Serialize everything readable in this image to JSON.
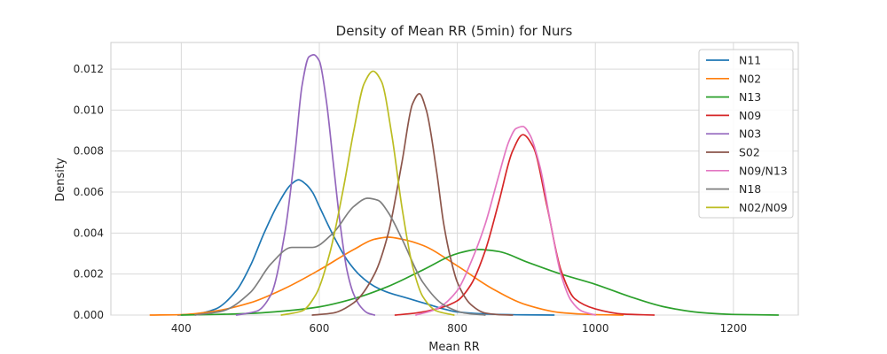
{
  "chart_data": {
    "type": "line",
    "title": "Density of Mean RR (5min) for Nurs",
    "xlabel": "Mean RR",
    "ylabel": "Density",
    "xlim": [
      298,
      1294
    ],
    "ylim": [
      0,
      0.0133
    ],
    "xticks": [
      400,
      600,
      800,
      1000,
      1200
    ],
    "xtick_labels": [
      "400",
      "600",
      "800",
      "1000",
      "1200"
    ],
    "yticks": [
      0,
      0.002,
      0.004,
      0.006,
      0.008,
      0.01,
      0.012
    ],
    "ytick_labels": [
      "0.000",
      "0.002",
      "0.004",
      "0.006",
      "0.008",
      "0.010",
      "0.012"
    ],
    "grid": true,
    "legend_position": "top-right",
    "series": [
      {
        "name": "N11",
        "color": "#1f77b4",
        "x": [
          395,
          420,
          450,
          480,
          500,
          520,
          540,
          560,
          570,
          580,
          590,
          600,
          620,
          640,
          660,
          680,
          700,
          720,
          740,
          760,
          780,
          800,
          850,
          900,
          940
        ],
        "y": [
          0,
          5e-05,
          0.0003,
          0.0012,
          0.0024,
          0.004,
          0.0054,
          0.0064,
          0.0066,
          0.0064,
          0.006,
          0.0053,
          0.0039,
          0.0027,
          0.0019,
          0.0014,
          0.0011,
          0.0009,
          0.0007,
          0.0005,
          0.0003,
          0.00015,
          4e-05,
          1e-05,
          0
        ]
      },
      {
        "name": "N02",
        "color": "#ff7f0e",
        "x": [
          355,
          400,
          450,
          500,
          550,
          600,
          650,
          680,
          700,
          720,
          750,
          800,
          850,
          900,
          950,
          1000,
          1040
        ],
        "y": [
          0,
          2e-05,
          0.0002,
          0.0006,
          0.0013,
          0.0022,
          0.0032,
          0.0037,
          0.0038,
          0.0037,
          0.0034,
          0.0024,
          0.0013,
          0.0005,
          0.00012,
          2e-05,
          0
        ]
      },
      {
        "name": "N13",
        "color": "#2ca02c",
        "x": [
          400,
          450,
          500,
          550,
          600,
          650,
          700,
          750,
          800,
          830,
          860,
          900,
          950,
          1000,
          1050,
          1100,
          1150,
          1200,
          1265
        ],
        "y": [
          0,
          3e-05,
          8e-05,
          0.0002,
          0.0004,
          0.0008,
          0.0014,
          0.0022,
          0.003,
          0.0032,
          0.0031,
          0.0026,
          0.002,
          0.0015,
          0.0009,
          0.0004,
          0.00013,
          3e-05,
          0
        ]
      },
      {
        "name": "N09",
        "color": "#d62728",
        "x": [
          710,
          740,
          770,
          800,
          820,
          840,
          860,
          880,
          895,
          910,
          930,
          950,
          970,
          1000,
          1040,
          1085
        ],
        "y": [
          0,
          0.0001,
          0.0003,
          0.0007,
          0.0015,
          0.0031,
          0.0055,
          0.008,
          0.0088,
          0.0082,
          0.0053,
          0.0022,
          0.0008,
          0.0003,
          5e-05,
          0
        ]
      },
      {
        "name": "N03",
        "color": "#9467bd",
        "x": [
          480,
          510,
          530,
          550,
          565,
          575,
          585,
          592,
          600,
          610,
          620,
          630,
          640,
          650,
          660,
          670,
          680
        ],
        "y": [
          0,
          0.0002,
          0.001,
          0.004,
          0.008,
          0.0112,
          0.0126,
          0.0127,
          0.0124,
          0.0105,
          0.0075,
          0.0045,
          0.0022,
          0.001,
          0.0004,
          0.0001,
          0
        ]
      },
      {
        "name": "S02",
        "color": "#8c564b",
        "x": [
          590,
          620,
          650,
          680,
          700,
          720,
          735,
          745,
          755,
          770,
          780,
          790,
          800,
          820,
          840,
          860,
          880
        ],
        "y": [
          0,
          0.0001,
          0.0006,
          0.002,
          0.004,
          0.0075,
          0.0103,
          0.0108,
          0.01,
          0.007,
          0.0045,
          0.0028,
          0.0016,
          0.0005,
          0.0001,
          2e-05,
          0
        ]
      },
      {
        "name": "N09/N13",
        "color": "#e377c2",
        "x": [
          740,
          770,
          800,
          820,
          840,
          860,
          875,
          885,
          895,
          905,
          920,
          935,
          950,
          965,
          980,
          1000
        ],
        "y": [
          0,
          0.0003,
          0.0012,
          0.0026,
          0.0044,
          0.0068,
          0.0085,
          0.0091,
          0.0092,
          0.0088,
          0.0072,
          0.0045,
          0.002,
          0.0007,
          0.0002,
          0
        ]
      },
      {
        "name": "N18",
        "color": "#7f7f7f",
        "x": [
          420,
          460,
          500,
          530,
          560,
          590,
          620,
          650,
          670,
          685,
          700,
          720,
          750,
          780,
          810,
          840
        ],
        "y": [
          0,
          0.0002,
          0.0011,
          0.0025,
          0.0033,
          0.0033,
          0.004,
          0.0053,
          0.0057,
          0.0056,
          0.005,
          0.0037,
          0.0016,
          0.0005,
          0.0001,
          0
        ]
      },
      {
        "name": "N02/N09",
        "color": "#bcbd22",
        "x": [
          545,
          575,
          595,
          615,
          635,
          650,
          665,
          678,
          690,
          705,
          720,
          735,
          750,
          770,
          795
        ],
        "y": [
          0,
          0.0002,
          0.001,
          0.003,
          0.0062,
          0.009,
          0.0113,
          0.0119,
          0.0114,
          0.0088,
          0.0052,
          0.0024,
          0.0009,
          0.0002,
          0
        ]
      }
    ]
  }
}
